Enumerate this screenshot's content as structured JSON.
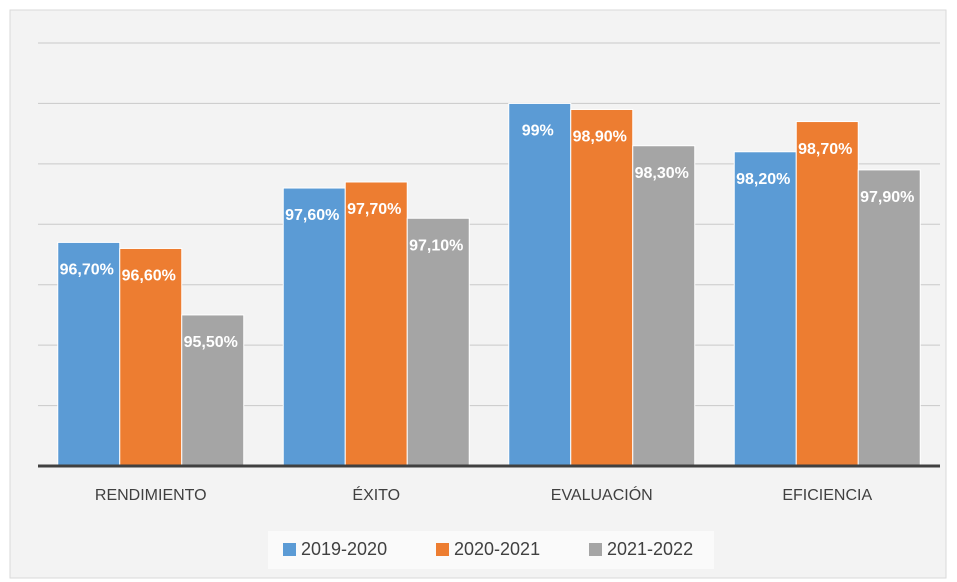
{
  "chart_data": {
    "type": "bar",
    "categories": [
      "RENDIMIENTO",
      "ÉXITO",
      "EVALUACIÓN",
      "EFICIENCIA"
    ],
    "series": [
      {
        "name": "2019-2020",
        "color": "#5b9bd5",
        "values": [
          96.7,
          97.6,
          99,
          98.2
        ],
        "value_labels": [
          "96,70%",
          "97,60%",
          "99%",
          "98,20%"
        ]
      },
      {
        "name": "2020-2021",
        "color": "#ed7d31",
        "values": [
          96.6,
          97.7,
          98.9,
          98.7
        ],
        "value_labels": [
          "96,60%",
          "97,70%",
          "98,90%",
          "98,70%"
        ]
      },
      {
        "name": "2021-2022",
        "color": "#a5a5a5",
        "values": [
          95.5,
          97.1,
          98.3,
          97.9
        ],
        "value_labels": [
          "95,50%",
          "97,10%",
          "98,30%",
          "97,90%"
        ]
      }
    ],
    "ylim": [
      93,
      100
    ],
    "yticks": [
      94,
      95,
      96,
      97,
      98,
      99,
      100
    ],
    "grid": true,
    "legend": "bottom"
  }
}
